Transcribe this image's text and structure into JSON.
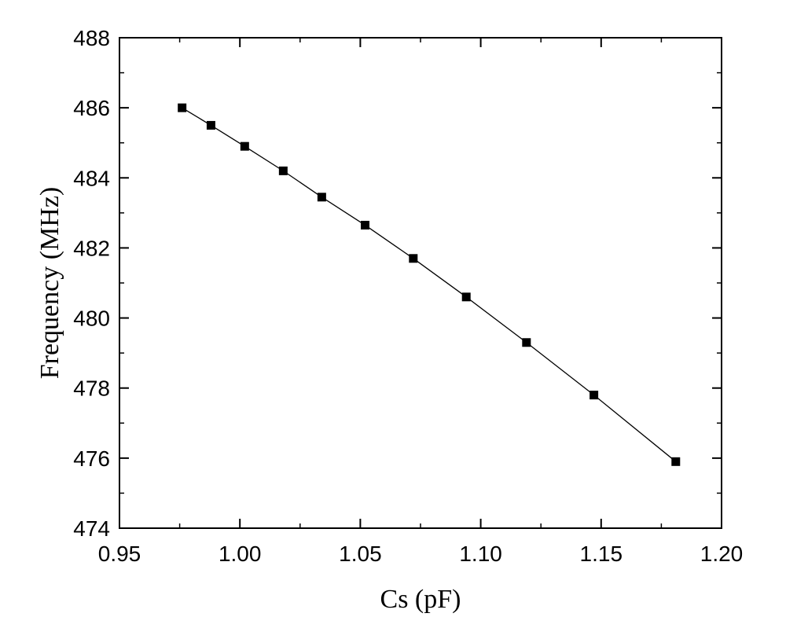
{
  "chart_data": {
    "type": "line",
    "title": "",
    "xlabel": "Cs (pF)",
    "ylabel": "Frequency (MHz)",
    "xlim": [
      0.95,
      1.2
    ],
    "ylim": [
      474,
      488
    ],
    "x_ticks": [
      "0.95",
      "1.00",
      "1.05",
      "1.10",
      "1.15",
      "1.20"
    ],
    "y_ticks": [
      "474",
      "476",
      "478",
      "480",
      "482",
      "484",
      "486",
      "488"
    ],
    "grid": false,
    "legend": "none",
    "marker": "square",
    "series": [
      {
        "x": [
          0.976,
          0.988,
          1.002,
          1.018,
          1.034,
          1.052,
          1.072,
          1.094,
          1.119,
          1.147,
          1.181
        ],
        "y": [
          486.0,
          485.5,
          484.9,
          484.2,
          483.45,
          482.65,
          481.7,
          480.6,
          479.3,
          477.8,
          475.9
        ]
      }
    ],
    "colors": {
      "line": "#000000",
      "marker": "#000000",
      "axis": "#000000"
    }
  }
}
